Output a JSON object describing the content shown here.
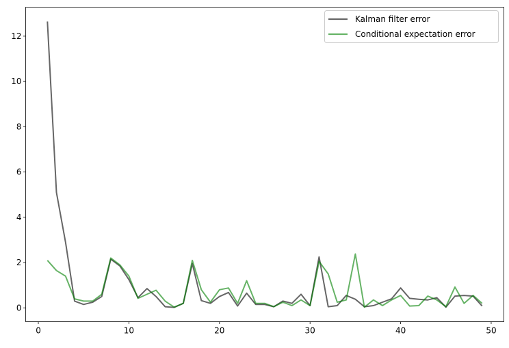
{
  "chart_data": {
    "type": "line",
    "title": "",
    "xlabel": "",
    "ylabel": "",
    "xlim": [
      -1.4,
      51.4
    ],
    "ylim": [
      -0.61,
      13.28
    ],
    "xticks": [
      0,
      10,
      20,
      30,
      40,
      50
    ],
    "yticks": [
      0,
      2,
      4,
      6,
      8,
      10,
      12
    ],
    "grid": false,
    "legend_position": "top-right",
    "x": [
      1,
      2,
      3,
      4,
      5,
      6,
      7,
      8,
      9,
      10,
      11,
      12,
      13,
      14,
      15,
      16,
      17,
      18,
      19,
      20,
      21,
      22,
      23,
      24,
      25,
      26,
      27,
      28,
      29,
      30,
      31,
      32,
      33,
      34,
      35,
      36,
      37,
      38,
      39,
      40,
      41,
      42,
      43,
      44,
      45,
      46,
      47,
      48,
      49
    ],
    "series": [
      {
        "name": "Kalman filter error",
        "color": "#000000",
        "opacity": 0.6,
        "values": [
          12.65,
          5.1,
          2.9,
          0.3,
          0.15,
          0.25,
          0.5,
          2.15,
          1.85,
          1.25,
          0.45,
          0.85,
          0.5,
          0.05,
          0.02,
          0.2,
          1.95,
          0.32,
          0.2,
          0.5,
          0.68,
          0.08,
          0.65,
          0.15,
          0.15,
          0.05,
          0.3,
          0.2,
          0.6,
          0.1,
          2.25,
          0.05,
          0.1,
          0.55,
          0.38,
          0.05,
          0.1,
          0.25,
          0.4,
          0.88,
          0.42,
          0.38,
          0.35,
          0.45,
          0.03,
          0.52,
          0.55,
          0.52,
          0.08
        ]
      },
      {
        "name": "Conditional expectation error",
        "color": "#008000",
        "opacity": 0.6,
        "values": [
          2.1,
          1.65,
          1.4,
          0.4,
          0.3,
          0.3,
          0.6,
          2.2,
          1.9,
          1.4,
          0.42,
          0.6,
          0.78,
          0.3,
          0.03,
          0.2,
          2.1,
          0.8,
          0.25,
          0.8,
          0.88,
          0.2,
          1.2,
          0.2,
          0.2,
          0.05,
          0.25,
          0.1,
          0.35,
          0.1,
          2.05,
          1.5,
          0.25,
          0.35,
          2.38,
          0.03,
          0.35,
          0.1,
          0.35,
          0.55,
          0.08,
          0.1,
          0.52,
          0.35,
          0.05,
          0.92,
          0.2,
          0.55,
          0.2
        ]
      }
    ]
  }
}
